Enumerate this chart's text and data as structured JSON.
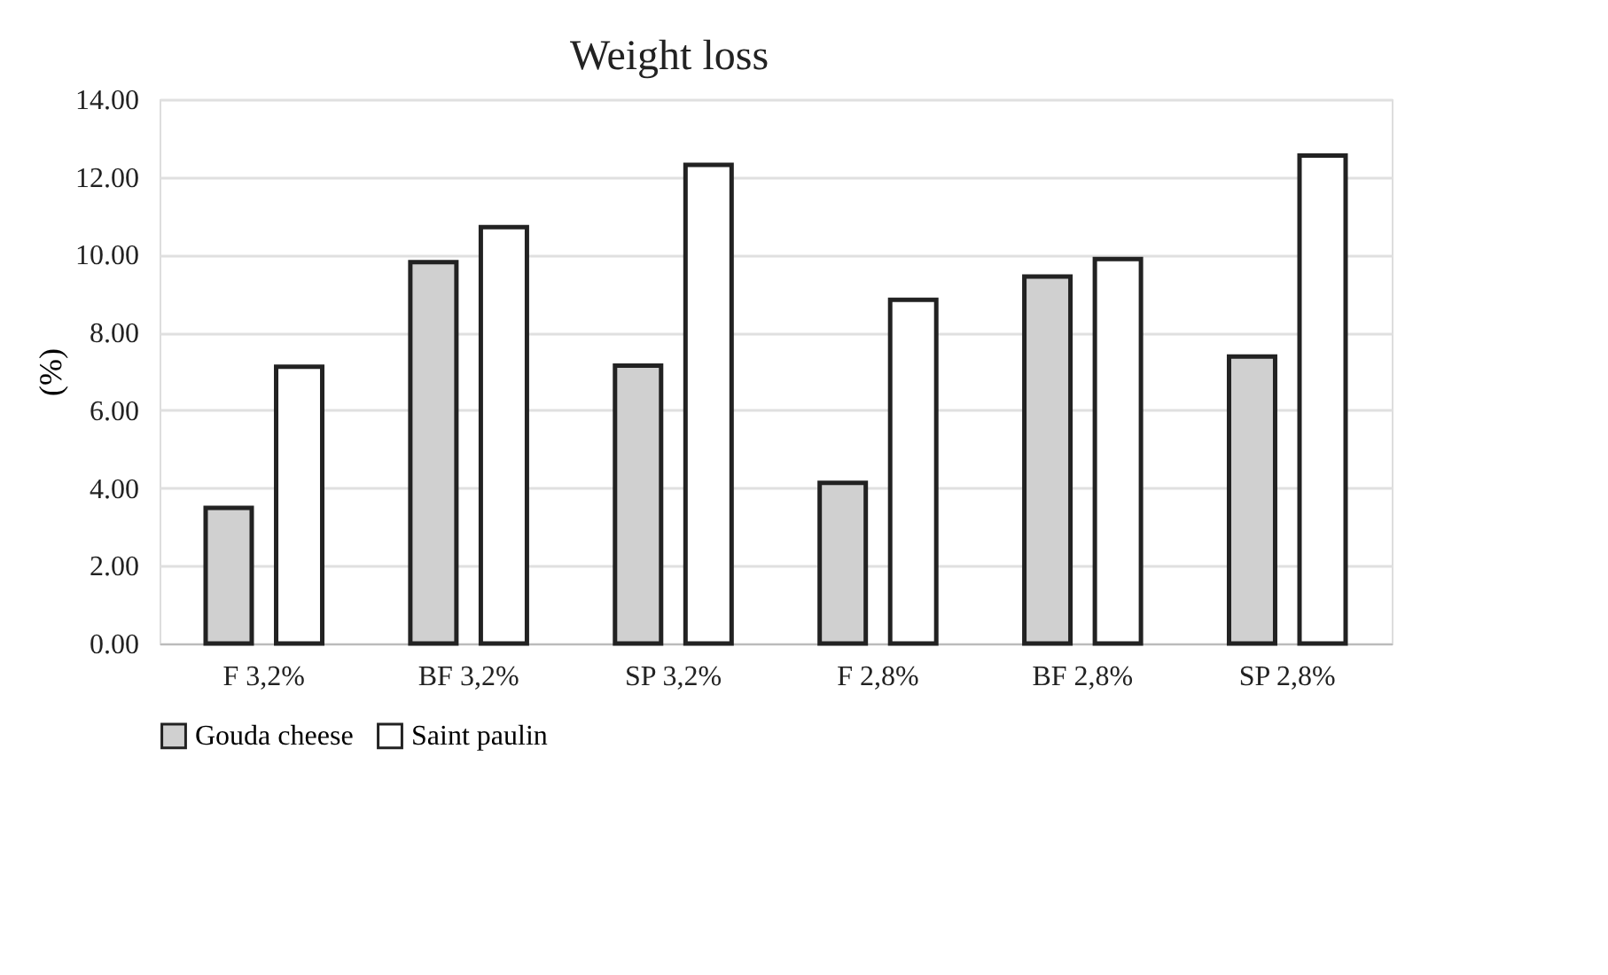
{
  "chart_data": {
    "type": "bar",
    "title": "Weight loss",
    "ylabel": "(%)",
    "categories": [
      "F 3,2%",
      "BF 3,2%",
      "SP 3,2%",
      "F 2,8%",
      "BF 2,8%",
      "SP 2,8%"
    ],
    "series": [
      {
        "name": "Gouda cheese",
        "color": "#d0d0d0",
        "values": [
          3.49,
          9.81,
          7.15,
          4.13,
          9.44,
          7.38
        ]
      },
      {
        "name": "Saint paulin",
        "color": "#ffffff",
        "values": [
          7.12,
          10.71,
          12.31,
          8.84,
          9.89,
          12.55
        ]
      }
    ],
    "ylim": [
      0,
      14
    ],
    "yticks": [
      {
        "value": 0,
        "label": "0.00"
      },
      {
        "value": 2,
        "label": "2.00"
      },
      {
        "value": 4,
        "label": "4.00"
      },
      {
        "value": 6,
        "label": "6.00"
      },
      {
        "value": 8,
        "label": "8.00"
      },
      {
        "value": 10,
        "label": "10.00"
      },
      {
        "value": 12,
        "label": "12.00"
      },
      {
        "value": 14,
        "label": "14.00"
      }
    ],
    "grid": "y",
    "legend": "bottom"
  }
}
